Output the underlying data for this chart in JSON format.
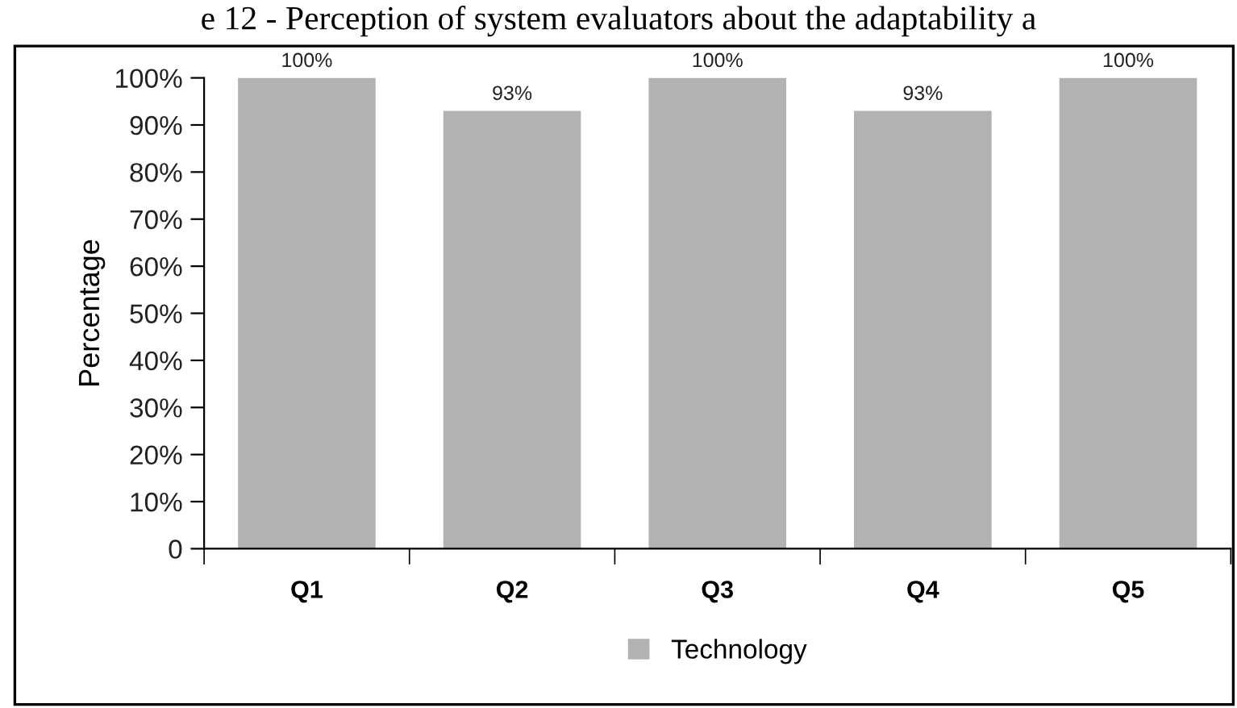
{
  "chart_data": {
    "type": "bar",
    "title": "e 12 - Perception of system evaluators about the adaptability a",
    "ylabel": "Percentage",
    "categories": [
      "Q1",
      "Q2",
      "Q3",
      "Q4",
      "Q5"
    ],
    "series": [
      {
        "name": "Technology",
        "color": "#b2b2b2",
        "values": [
          100,
          93,
          100,
          93,
          100
        ],
        "value_labels": [
          "100%",
          "93%",
          "100%",
          "93%",
          "100%"
        ]
      }
    ],
    "ylim": [
      0,
      100
    ],
    "yticks": [
      {
        "value": 0,
        "label": "0"
      },
      {
        "value": 10,
        "label": "10%"
      },
      {
        "value": 20,
        "label": "20%"
      },
      {
        "value": 30,
        "label": "30%"
      },
      {
        "value": 40,
        "label": "40%"
      },
      {
        "value": 50,
        "label": "50%"
      },
      {
        "value": 60,
        "label": "60%"
      },
      {
        "value": 70,
        "label": "70%"
      },
      {
        "value": 80,
        "label": "80%"
      },
      {
        "value": 90,
        "label": "90%"
      },
      {
        "value": 100,
        "label": "100%"
      }
    ],
    "grid": false,
    "legend": "bottom"
  }
}
